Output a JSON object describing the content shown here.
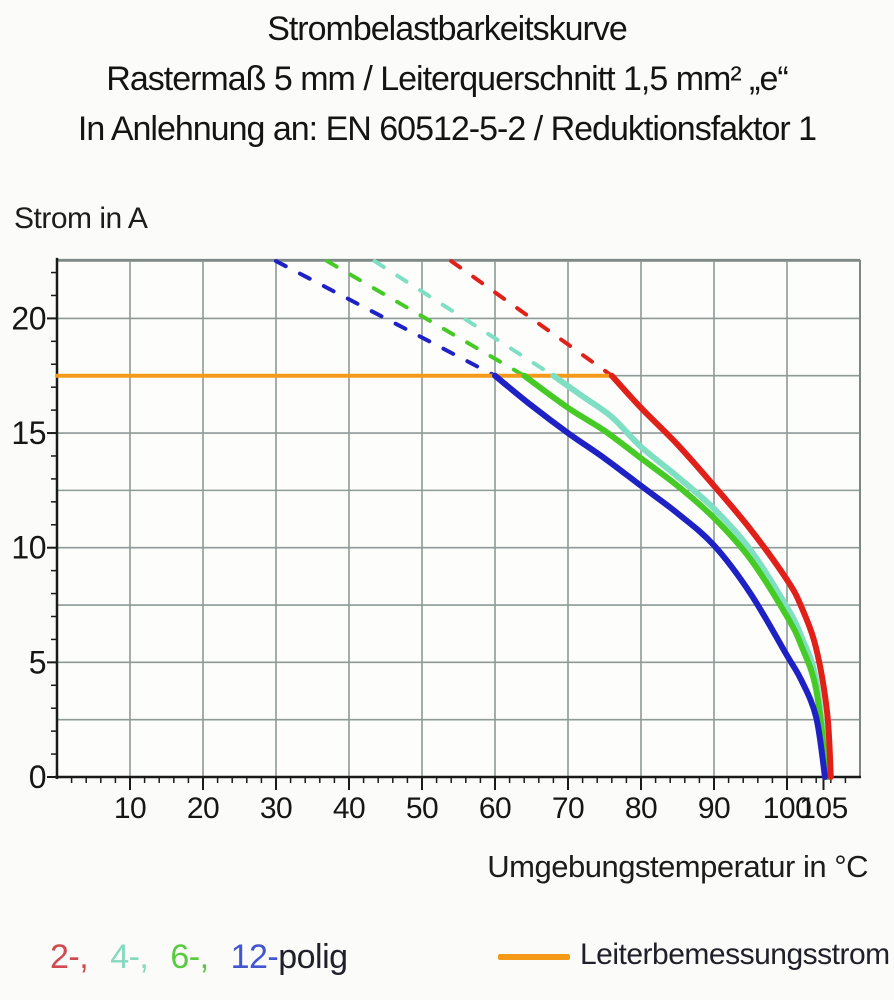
{
  "title": {
    "line1": "Strombelastbarkeitskurve",
    "line2": "Rastermaß 5 mm / Leiterquerschnitt 1,5 mm² „e“",
    "line3": "In Anlehnung an: EN 60512-5-2 / Reduktionsfaktor 1"
  },
  "chart_data": {
    "type": "line",
    "title": "Strombelastbarkeitskurve",
    "xlabel": "Umgebungstemperatur in °C",
    "ylabel": "Strom in A",
    "xlim": [
      0,
      110
    ],
    "ylim": [
      0,
      22.55
    ],
    "x_gridline_step": 10,
    "y_gridline_step": 2.5,
    "x_minor_tick_step": 2,
    "y_minor_tick_step": 1,
    "x_ticks": [
      10,
      20,
      30,
      40,
      50,
      60,
      70,
      80,
      90,
      100,
      105
    ],
    "y_ticks": [
      0,
      5,
      10,
      15,
      20
    ],
    "grid": true,
    "legend_position": "bottom",
    "rated_current_A": 17.5,
    "series": [
      {
        "name": "12-polig",
        "role": "derating-dashed",
        "color": "#1e22c4",
        "points": [
          [
            30,
            22.5
          ],
          [
            60,
            17.5
          ]
        ]
      },
      {
        "name": "6-polig",
        "role": "derating-dashed",
        "color": "#46cb26",
        "points": [
          [
            37,
            22.5
          ],
          [
            64,
            17.5
          ]
        ]
      },
      {
        "name": "4-polig",
        "role": "derating-dashed",
        "color": "#7fdfc2",
        "points": [
          [
            43.5,
            22.5
          ],
          [
            68,
            17.5
          ]
        ]
      },
      {
        "name": "2-polig",
        "role": "derating-dashed",
        "color": "#e02019",
        "points": [
          [
            54,
            22.5
          ],
          [
            76,
            17.5
          ]
        ]
      },
      {
        "name": "Leiterbemessungsstrom",
        "role": "rated-line",
        "color": "#f59a18",
        "points": [
          [
            0,
            17.5
          ],
          [
            76,
            17.5
          ]
        ]
      },
      {
        "name": "4-polig",
        "role": "solid",
        "color": "#7fdfc2",
        "points": [
          [
            68,
            17.5
          ],
          [
            72,
            16.6
          ],
          [
            76,
            15.7
          ],
          [
            80,
            14.4
          ],
          [
            85,
            13.1
          ],
          [
            90,
            11.7
          ],
          [
            95,
            9.9
          ],
          [
            100,
            7.4
          ],
          [
            102,
            6.1
          ],
          [
            104,
            4.2
          ],
          [
            105.6,
            0
          ]
        ]
      },
      {
        "name": "6-polig",
        "role": "solid",
        "color": "#46cb26",
        "points": [
          [
            64,
            17.5
          ],
          [
            70,
            16.1
          ],
          [
            75,
            15.1
          ],
          [
            80,
            13.9
          ],
          [
            85,
            12.7
          ],
          [
            90,
            11.3
          ],
          [
            95,
            9.5
          ],
          [
            100,
            7.0
          ],
          [
            102,
            5.7
          ],
          [
            104,
            3.8
          ],
          [
            105.5,
            0
          ]
        ]
      },
      {
        "name": "2-polig",
        "role": "solid",
        "color": "#e02019",
        "points": [
          [
            76,
            17.5
          ],
          [
            80,
            16.1
          ],
          [
            85,
            14.5
          ],
          [
            90,
            12.7
          ],
          [
            95,
            10.8
          ],
          [
            100,
            8.6
          ],
          [
            102,
            7.4
          ],
          [
            104,
            5.6
          ],
          [
            105.5,
            2.8
          ],
          [
            106,
            0
          ]
        ]
      },
      {
        "name": "12-polig",
        "role": "solid",
        "color": "#1e22c4",
        "points": [
          [
            60,
            17.5
          ],
          [
            65,
            16.2
          ],
          [
            70,
            15.0
          ],
          [
            75,
            13.9
          ],
          [
            80,
            12.7
          ],
          [
            85,
            11.5
          ],
          [
            90,
            10.1
          ],
          [
            95,
            8.0
          ],
          [
            100,
            5.3
          ],
          [
            102,
            4.2
          ],
          [
            104,
            2.6
          ],
          [
            105.2,
            0
          ]
        ]
      }
    ]
  },
  "legend": {
    "poles": [
      {
        "label": "2-,",
        "color": "#d04a50",
        "series": "2-polig"
      },
      {
        "label": "4-,",
        "color": "#85d9c0",
        "series": "4-polig"
      },
      {
        "label": "6-,",
        "color": "#58cb41",
        "series": "6-polig"
      },
      {
        "label": "12-",
        "color": "#4156cf",
        "series": "12-polig"
      }
    ],
    "suffix": "polig",
    "rated_label": "Leiterbemessungsstrom",
    "rated_color": "#f59a18"
  },
  "colors": {
    "grid": "#8d9a97",
    "border": "#7b8884",
    "axis": "#1a1a1a",
    "plot_background": "#fdfdfc"
  }
}
